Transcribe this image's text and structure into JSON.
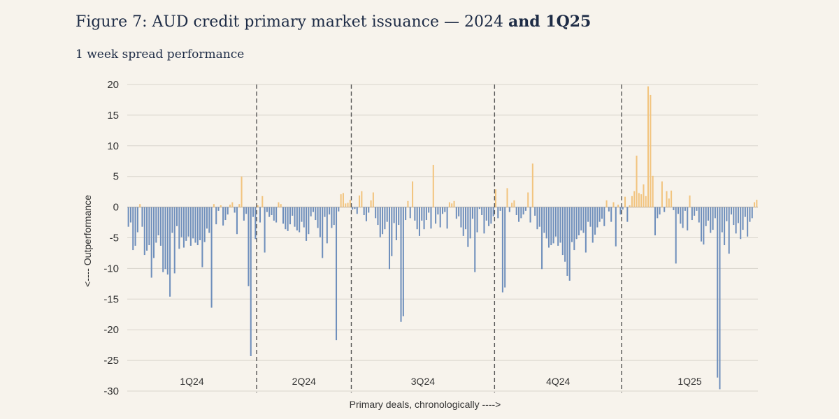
{
  "header": {
    "title_main": "Figure 7: AUD credit primary market issuance — 2024",
    "title_bold": "and 1Q25",
    "subtitle": "1 week spread performance"
  },
  "colors": {
    "negative": "#6f8fbc",
    "positive": "#f2c47f",
    "grid": "#d9d4cc",
    "divider": "#555555"
  },
  "chart_data": {
    "type": "bar",
    "title": "Figure 7: AUD credit primary market issuance — 2024 and 1Q25",
    "subtitle": "1 week spread performance",
    "xlabel": "Primary deals, chronologically ---->",
    "ylabel": "<---- Outperformance",
    "ylim": [
      -30,
      20
    ],
    "yticks": [
      20,
      15,
      10,
      5,
      0,
      -5,
      -10,
      -15,
      -20,
      -25,
      -30
    ],
    "grid": true,
    "quarters": [
      {
        "label": "1Q24",
        "count": 56
      },
      {
        "label": "2Q24",
        "count": 41
      },
      {
        "label": "3Q24",
        "count": 62
      },
      {
        "label": "4Q24",
        "count": 55
      },
      {
        "label": "1Q25",
        "count": 59
      }
    ],
    "values": [
      -3.2,
      -2.5,
      -7,
      -6.3,
      -4.1,
      0.5,
      -3.2,
      -7.8,
      -7.1,
      -6.2,
      -11.5,
      -8.3,
      -5.8,
      -4.6,
      -6.3,
      -10.6,
      -10.1,
      -11,
      -14.6,
      -4.2,
      -10.8,
      -3.1,
      -6.8,
      -4.9,
      -6.6,
      -5.5,
      -4.8,
      -6.3,
      -5.1,
      -5.8,
      -6.2,
      -5.4,
      -9.8,
      -5.7,
      -3.5,
      -4.2,
      -16.4,
      0.5,
      -2.8,
      -0.6,
      0.3,
      -3,
      -2.1,
      -1.2,
      0.4,
      0.8,
      -0.9,
      -4.4,
      0.5,
      5,
      -2.2,
      -1.1,
      -12.9,
      -24.3,
      -1.6,
      -5.2,
      0.3,
      -2.5,
      1.8,
      -7.4,
      -0.8,
      -1.6,
      -1.3,
      -2.2,
      -2.5,
      0.8,
      0.5,
      -2.7,
      -3.6,
      -3.9,
      -2.8,
      -1.4,
      -3.2,
      -3.8,
      -4.1,
      -2.4,
      -3.3,
      -5.5,
      -4.4,
      -1.5,
      -0.8,
      -2.1,
      -3.4,
      -4.9,
      -8.3,
      -1.6,
      -5.9,
      -1.2,
      -3.4,
      -2.9,
      -21.7,
      -0.7,
      2.1,
      2.3,
      0.6,
      0.7,
      1.2,
      -0.4,
      -0.3,
      -1.1,
      1.9,
      2.6,
      -1.3,
      -2.3,
      -0.9,
      1.1,
      2.4,
      -1.8,
      -2.9,
      -4.9,
      -4.4,
      -3.6,
      -2.4,
      -10.1,
      -8,
      -2.6,
      -5.4,
      -2.9,
      -18.7,
      -17.8,
      -2.1,
      1,
      -1.8,
      4.2,
      -2.2,
      -3.6,
      -4.7,
      -2.2,
      -3.6,
      -2.1,
      -0.9,
      -3.5,
      6.9,
      -2.7,
      -1.2,
      -3.3,
      -1.1,
      -0.8,
      -3.5,
      0.8,
      0.6,
      1,
      -1.9,
      -1.5,
      -3.3,
      -4.7,
      -3.6,
      -6.5,
      -5.1,
      -1.9,
      -10.6,
      -4.1,
      -0.3,
      -1.3,
      -4.3,
      -2.2,
      -3.1,
      -2.7,
      -1.5,
      2.9,
      -1.8,
      -0.6,
      -13.9,
      -13.1,
      3.1,
      -0.8,
      0.7,
      1.1,
      -1.3,
      -2.4,
      -1.8,
      -1.2,
      -0.6,
      2.4,
      -2.5,
      7.1,
      -1.4,
      -3.6,
      -3.2,
      -10.1,
      -4.2,
      -5.1,
      -6.6,
      -6.2,
      -5.9,
      -4.8,
      -6.3,
      -5.8,
      -7.8,
      -8.9,
      -11.2,
      -12,
      -5.7,
      -7,
      -5.2,
      -4.6,
      -3.8,
      -4.2,
      -7.4,
      -2.4,
      -3.2,
      -5.8,
      -4.5,
      -3.3,
      -2.4,
      -1.9,
      -3.1,
      1.1,
      -0.7,
      -2.4,
      0.8,
      -6.4,
      0.4,
      -1.2,
      -0.4,
      1.7,
      -2.4,
      0.3,
      1.8,
      2.6,
      8.4,
      2.3,
      2.1,
      3.7,
      1.8,
      19.7,
      18.3,
      5.1,
      -4.6,
      -1.8,
      -1.2,
      4.2,
      -0.8,
      2.6,
      1.4,
      2.7,
      -0.5,
      -9.2,
      -1.1,
      -2.7,
      -3.4,
      -0.6,
      -3.8,
      1.9,
      -2.1,
      -1.4,
      -0.6,
      -2.5,
      -5.6,
      -6.1,
      -3.1,
      -2.2,
      -4.2,
      -3.7,
      -1.8,
      -27.8,
      -29.7,
      -4.1,
      -6.2,
      -2.3,
      -7.6,
      -1.2,
      -2.9,
      -4.3,
      -2.6,
      -5.2,
      -3.7,
      -1.6,
      -4.8,
      -2.4,
      -1.8,
      0.8,
      1.2
    ]
  }
}
